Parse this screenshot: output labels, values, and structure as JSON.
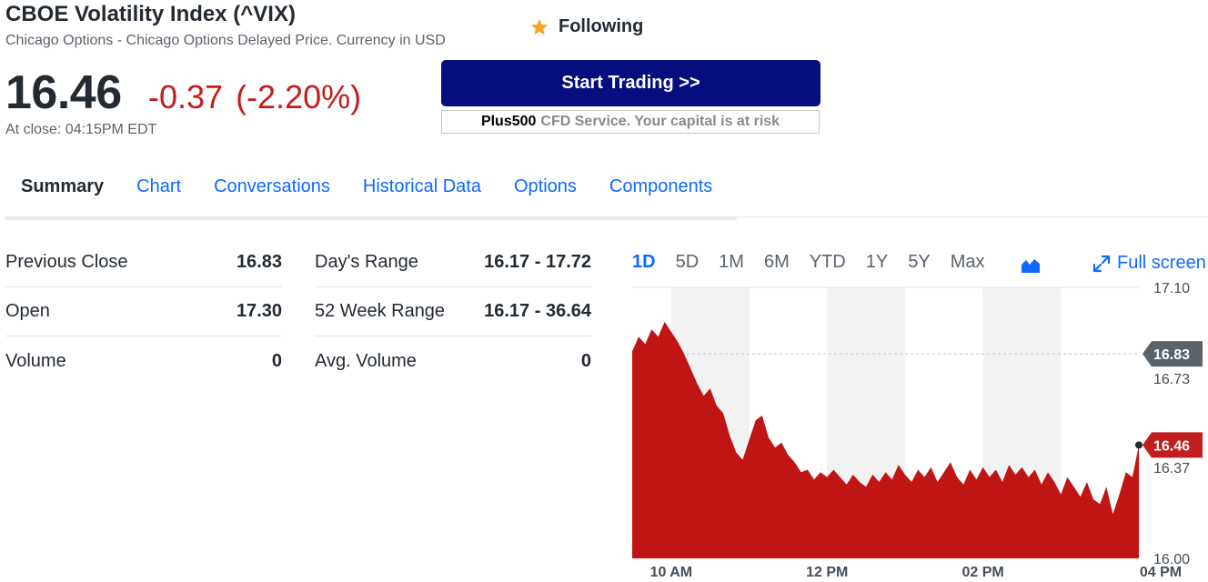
{
  "quote": {
    "title": "CBOE Volatility Index (^VIX)",
    "subtitle": "Chicago Options - Chicago Options Delayed Price. Currency in USD",
    "follow_label": "Following",
    "price": "16.46",
    "change": "-0.37",
    "change_pct": "(-2.20%)",
    "close_time": "At close: 04:15PM EDT"
  },
  "ad": {
    "button_label": "Start Trading >>",
    "brand": "Plus500",
    "disclaimer": "CFD Service. Your capital is at risk"
  },
  "tabs": [
    {
      "label": "Summary"
    },
    {
      "label": "Chart"
    },
    {
      "label": "Conversations"
    },
    {
      "label": "Historical Data"
    },
    {
      "label": "Options"
    },
    {
      "label": "Components"
    }
  ],
  "stats_left": [
    {
      "label": "Previous Close",
      "value": "16.83"
    },
    {
      "label": "Open",
      "value": "17.30"
    },
    {
      "label": "Volume",
      "value": "0"
    }
  ],
  "stats_right": [
    {
      "label": "Day's Range",
      "value": "16.17 - 17.72"
    },
    {
      "label": "52 Week Range",
      "value": "16.17 - 36.64"
    },
    {
      "label": "Avg. Volume",
      "value": "0"
    }
  ],
  "chart_controls": {
    "ranges": [
      "1D",
      "5D",
      "1M",
      "6M",
      "YTD",
      "1Y",
      "5Y",
      "Max"
    ],
    "active_range": "1D",
    "fullscreen_label": "Full screen"
  },
  "colors": {
    "accent": "#0f69ff",
    "down": "#c31e1e",
    "area_fill": "#bf1515",
    "ad_button": "#040e7e"
  },
  "chart_data": {
    "type": "area",
    "x": [
      "09:30",
      "09:35",
      "09:40",
      "09:45",
      "09:50",
      "09:55",
      "10:00",
      "10:05",
      "10:10",
      "10:15",
      "10:20",
      "10:25",
      "10:30",
      "10:35",
      "10:40",
      "10:45",
      "10:50",
      "10:55",
      "11:00",
      "11:05",
      "11:10",
      "11:15",
      "11:20",
      "11:25",
      "11:30",
      "11:35",
      "11:40",
      "11:45",
      "11:50",
      "11:55",
      "12:00",
      "12:05",
      "12:10",
      "12:15",
      "12:20",
      "12:25",
      "12:30",
      "12:35",
      "12:40",
      "12:45",
      "12:50",
      "12:55",
      "13:00",
      "13:05",
      "13:10",
      "13:15",
      "13:20",
      "13:25",
      "13:30",
      "13:35",
      "13:40",
      "13:45",
      "13:50",
      "13:55",
      "14:00",
      "14:05",
      "14:10",
      "14:15",
      "14:20",
      "14:25",
      "14:30",
      "14:35",
      "14:40",
      "14:45",
      "14:50",
      "14:55",
      "15:00",
      "15:05",
      "15:10",
      "15:15",
      "15:20",
      "15:25",
      "15:30",
      "15:35",
      "15:40",
      "15:45",
      "15:50",
      "15:55",
      "16:00"
    ],
    "y": [
      16.84,
      16.9,
      16.87,
      16.93,
      16.9,
      16.96,
      16.92,
      16.88,
      16.83,
      16.77,
      16.71,
      16.66,
      16.69,
      16.62,
      16.59,
      16.5,
      16.43,
      16.4,
      16.48,
      16.56,
      16.58,
      16.49,
      16.45,
      16.47,
      16.42,
      16.39,
      16.35,
      16.36,
      16.32,
      16.35,
      16.33,
      16.36,
      16.33,
      16.3,
      16.34,
      16.31,
      16.29,
      16.34,
      16.31,
      16.35,
      16.32,
      16.38,
      16.34,
      16.31,
      16.36,
      16.33,
      16.37,
      16.31,
      16.35,
      16.39,
      16.33,
      16.3,
      16.36,
      16.32,
      16.37,
      16.33,
      16.36,
      16.31,
      16.38,
      16.34,
      16.37,
      16.33,
      16.36,
      16.3,
      16.35,
      16.31,
      16.26,
      16.33,
      16.29,
      16.25,
      16.31,
      16.24,
      16.22,
      16.29,
      16.18,
      16.26,
      16.35,
      16.33,
      16.46
    ],
    "ylim": [
      16.0,
      17.1
    ],
    "y_ticks": [
      "17.10",
      "16.73",
      "16.37",
      "16.00"
    ],
    "x_ticks": [
      "10 AM",
      "12 PM",
      "02 PM",
      "04 PM"
    ],
    "previous_close": 16.83,
    "previous_close_label": "16.83",
    "last_value": 16.46,
    "last_value_label": "16.46",
    "grid": true
  }
}
